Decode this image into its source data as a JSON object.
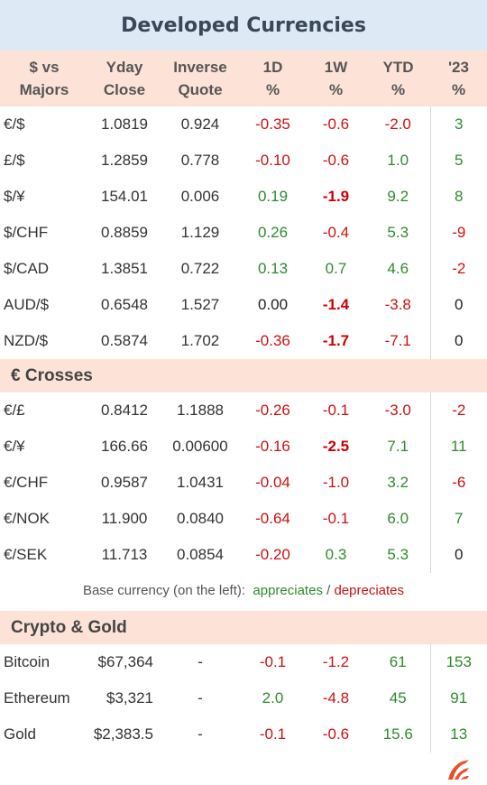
{
  "title": "Developed Currencies",
  "header": {
    "col0": [
      "$  vs",
      "Majors"
    ],
    "col1": [
      "Yday",
      "Close"
    ],
    "col2": [
      "Inverse",
      "Quote"
    ],
    "col3": [
      "1D",
      "%"
    ],
    "col4": [
      "1W",
      "%"
    ],
    "col5": [
      "YTD",
      "%"
    ],
    "col6": [
      "'23",
      "%"
    ]
  },
  "majors": [
    {
      "pair": "€/$",
      "close": "1.0819",
      "inverse": "0.924",
      "d1": "-0.35",
      "w1": "-0.6",
      "ytd": "-2.0",
      "y23": "3"
    },
    {
      "pair": "£/$",
      "close": "1.2859",
      "inverse": "0.778",
      "d1": "-0.10",
      "w1": "-0.6",
      "ytd": "1.0",
      "y23": "5"
    },
    {
      "pair": "$/¥",
      "close": "154.01",
      "inverse": "0.006",
      "d1": "0.19",
      "w1": "-1.9",
      "ytd": "9.2",
      "y23": "8"
    },
    {
      "pair": "$/CHF",
      "close": "0.8859",
      "inverse": "1.129",
      "d1": "0.26",
      "w1": "-0.4",
      "ytd": "5.3",
      "y23": "-9"
    },
    {
      "pair": "$/CAD",
      "close": "1.3851",
      "inverse": "0.722",
      "d1": "0.13",
      "w1": "0.7",
      "ytd": "4.6",
      "y23": "-2"
    },
    {
      "pair": "AUD/$",
      "close": "0.6548",
      "inverse": "1.527",
      "d1": "0.00",
      "w1": "-1.4",
      "ytd": "-3.8",
      "y23": "0"
    },
    {
      "pair": "NZD/$",
      "close": "0.5874",
      "inverse": "1.702",
      "d1": "-0.36",
      "w1": "-1.7",
      "ytd": "-7.1",
      "y23": "0"
    }
  ],
  "crosses_title": "€ Crosses",
  "crosses": [
    {
      "pair": "€/£",
      "close": "0.8412",
      "inverse": "1.1888",
      "d1": "-0.26",
      "w1": "-0.1",
      "ytd": "-3.0",
      "y23": "-2"
    },
    {
      "pair": "€/¥",
      "close": "166.66",
      "inverse": "0.00600",
      "d1": "-0.16",
      "w1": "-2.5",
      "ytd": "7.1",
      "y23": "11"
    },
    {
      "pair": "€/CHF",
      "close": "0.9587",
      "inverse": "1.0431",
      "d1": "-0.04",
      "w1": "-1.0",
      "ytd": "3.2",
      "y23": "-6"
    },
    {
      "pair": "€/NOK",
      "close": "11.900",
      "inverse": "0.0840",
      "d1": "-0.64",
      "w1": "-0.1",
      "ytd": "6.0",
      "y23": "7"
    },
    {
      "pair": "€/SEK",
      "close": "11.713",
      "inverse": "0.0854",
      "d1": "-0.20",
      "w1": "0.3",
      "ytd": "5.3",
      "y23": "0"
    }
  ],
  "note": {
    "prefix": "Base currency (on the left):",
    "appreciates": "appreciates",
    "sep": "/",
    "depreciates": "depreciates"
  },
  "crypto_title": "Crypto & Gold",
  "crypto": [
    {
      "name": "Bitcoin",
      "close": "$67,364",
      "inverse": "-",
      "d1": "-0.1",
      "w1": "-1.2",
      "ytd": "61",
      "y23": "153"
    },
    {
      "name": "Ethereum",
      "close": "$3,321",
      "inverse": "-",
      "d1": "2.0",
      "w1": "-4.8",
      "ytd": "45",
      "y23": "91"
    },
    {
      "name": "Gold",
      "close": "$2,383.5",
      "inverse": "-",
      "d1": "-0.1",
      "w1": "-0.6",
      "ytd": "15.6",
      "y23": "13"
    }
  ],
  "colors": {
    "positive": "#2e8b2e",
    "negative": "#cc1111",
    "header_bg": "#fde3d7",
    "title_bg": "#dde9f5",
    "logo": "#e8502a"
  },
  "logo_icon": "brand-logo-icon"
}
